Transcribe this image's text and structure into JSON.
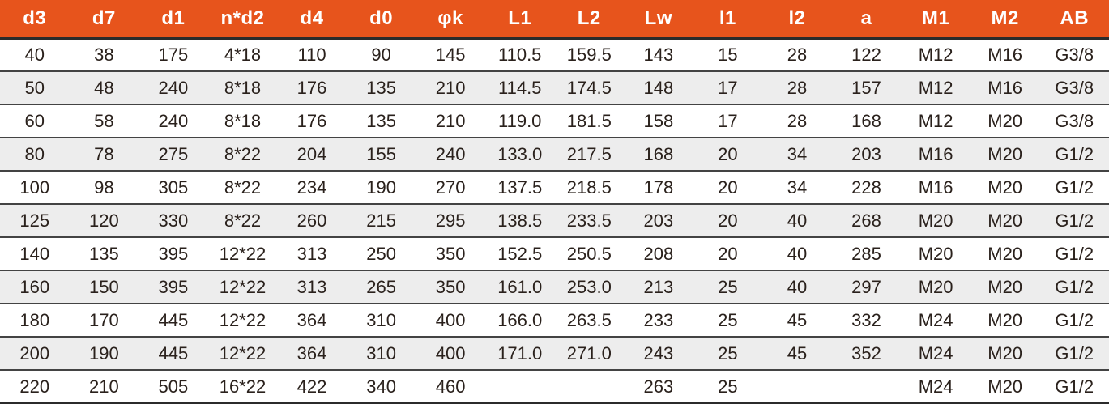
{
  "style": {
    "header_bg": "#E7541C",
    "header_text": "#FFFFFF",
    "stripe_bg": "#EDEDED",
    "row_line": "#434343",
    "frame_line": "#2B2B2B",
    "cell_text": "#2A211C"
  },
  "table": {
    "columns": [
      "d3",
      "d7",
      "d1",
      "n*d2",
      "d4",
      "d0",
      "φk",
      "L1",
      "L2",
      "Lw",
      "l1",
      "l2",
      "a",
      "M1",
      "M2",
      "AB"
    ],
    "rows": [
      [
        "40",
        "38",
        "175",
        "4*18",
        "110",
        "90",
        "145",
        "110.5",
        "159.5",
        "143",
        "15",
        "28",
        "122",
        "M12",
        "M16",
        "G3/8"
      ],
      [
        "50",
        "48",
        "240",
        "8*18",
        "176",
        "135",
        "210",
        "114.5",
        "174.5",
        "148",
        "17",
        "28",
        "157",
        "M12",
        "M16",
        "G3/8"
      ],
      [
        "60",
        "58",
        "240",
        "8*18",
        "176",
        "135",
        "210",
        "119.0",
        "181.5",
        "158",
        "17",
        "28",
        "168",
        "M12",
        "M20",
        "G3/8"
      ],
      [
        "80",
        "78",
        "275",
        "8*22",
        "204",
        "155",
        "240",
        "133.0",
        "217.5",
        "168",
        "20",
        "34",
        "203",
        "M16",
        "M20",
        "G1/2"
      ],
      [
        "100",
        "98",
        "305",
        "8*22",
        "234",
        "190",
        "270",
        "137.5",
        "218.5",
        "178",
        "20",
        "34",
        "228",
        "M16",
        "M20",
        "G1/2"
      ],
      [
        "125",
        "120",
        "330",
        "8*22",
        "260",
        "215",
        "295",
        "138.5",
        "233.5",
        "203",
        "20",
        "40",
        "268",
        "M20",
        "M20",
        "G1/2"
      ],
      [
        "140",
        "135",
        "395",
        "12*22",
        "313",
        "250",
        "350",
        "152.5",
        "250.5",
        "208",
        "20",
        "40",
        "285",
        "M20",
        "M20",
        "G1/2"
      ],
      [
        "160",
        "150",
        "395",
        "12*22",
        "313",
        "265",
        "350",
        "161.0",
        "253.0",
        "213",
        "25",
        "40",
        "297",
        "M20",
        "M20",
        "G1/2"
      ],
      [
        "180",
        "170",
        "445",
        "12*22",
        "364",
        "310",
        "400",
        "166.0",
        "263.5",
        "233",
        "25",
        "45",
        "332",
        "M24",
        "M20",
        "G1/2"
      ],
      [
        "200",
        "190",
        "445",
        "12*22",
        "364",
        "310",
        "400",
        "171.0",
        "271.0",
        "243",
        "25",
        "45",
        "352",
        "M24",
        "M20",
        "G1/2"
      ],
      [
        "220",
        "210",
        "505",
        "16*22",
        "422",
        "340",
        "460",
        "",
        "",
        "263",
        "25",
        "",
        "",
        "M24",
        "M20",
        "G1/2"
      ]
    ]
  }
}
